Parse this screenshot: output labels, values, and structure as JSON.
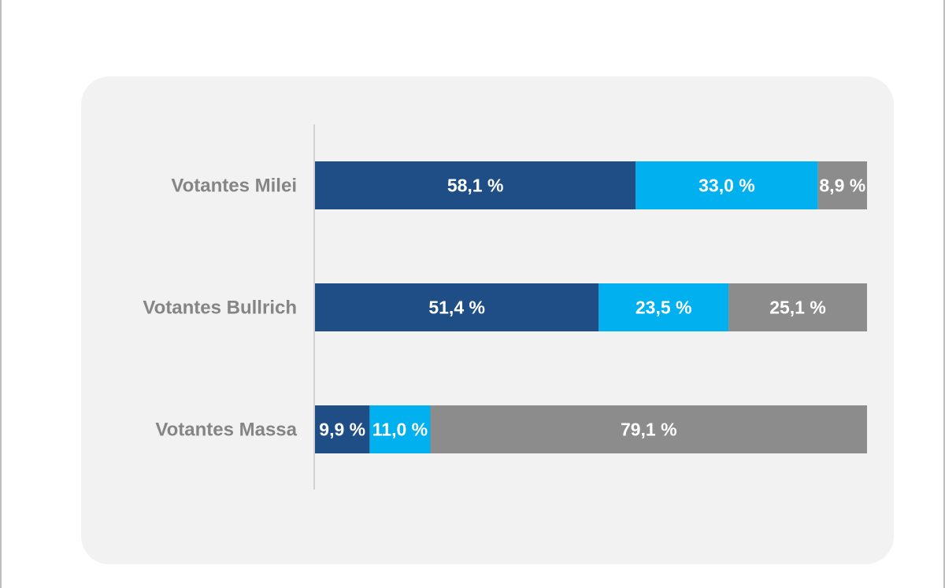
{
  "chart_data": {
    "type": "bar",
    "orientation": "horizontal",
    "stacked": true,
    "categories": [
      "Votantes Milei",
      "Votantes Bullrich",
      "Votantes Massa"
    ],
    "series": [
      {
        "color": "#1f4e86",
        "values": [
          58.1,
          51.4,
          9.9
        ],
        "labels": [
          "58,1 %",
          "51,4 %",
          "9,9 %"
        ]
      },
      {
        "color": "#00b0ef",
        "values": [
          33.0,
          23.5,
          11.0
        ],
        "labels": [
          "33,0 %",
          "23,5 %",
          "11,0 %"
        ]
      },
      {
        "color": "#8c8c8c",
        "values": [
          8.9,
          25.1,
          79.1
        ],
        "labels": [
          "8,9 %",
          "25,1 %",
          "79,1 %"
        ]
      }
    ],
    "xlim": [
      0,
      100
    ],
    "grid": false,
    "legend": "none"
  }
}
